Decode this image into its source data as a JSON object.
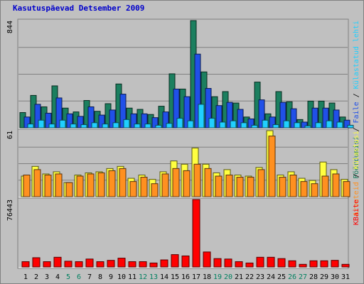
{
  "title": "Kasutuspäevad Detsember 2009",
  "colors": {
    "background": "#c0c0c0",
    "pageviews": "#1b7f5f",
    "files": "#2050e8",
    "hits": "#20d0ff",
    "visits": "#ffff40",
    "sites": "#ff9020",
    "kbytes": "#ff0000",
    "weekend_label": "#008060",
    "weekday_label": "#000000"
  },
  "chart_data": [
    {
      "type": "bar",
      "panel": "top",
      "ymax_label": "844",
      "ylim": [
        0,
        844
      ],
      "legend": [
        {
          "text": "Pöördumisi",
          "color": "#1b7f5f"
        },
        {
          "text": " / ",
          "color": "#000000"
        },
        {
          "text": "Faile",
          "color": "#2050e8"
        },
        {
          "text": " / ",
          "color": "#000000"
        },
        {
          "text": "Külastatud lehti",
          "color": "#20d0ff"
        }
      ],
      "categories": [
        "1",
        "2",
        "3",
        "4",
        "5",
        "6",
        "7",
        "8",
        "9",
        "10",
        "11",
        "12",
        "13",
        "14",
        "15",
        "16",
        "17",
        "18",
        "19",
        "20",
        "21",
        "22",
        "23",
        "24",
        "25",
        "26",
        "27",
        "28",
        "29",
        "30",
        "31"
      ],
      "series": [
        {
          "name": "Pöördumisi",
          "values": [
            120,
            255,
            165,
            330,
            155,
            125,
            215,
            130,
            190,
            345,
            155,
            145,
            105,
            170,
            425,
            305,
            844,
            440,
            245,
            285,
            195,
            85,
            360,
            110,
            285,
            205,
            65,
            210,
            210,
            195,
            85
          ]
        },
        {
          "name": "Faile",
          "values": [
            85,
            185,
            115,
            235,
            110,
            90,
            165,
            100,
            140,
            265,
            110,
            110,
            80,
            125,
            305,
            245,
            580,
            310,
            175,
            200,
            145,
            70,
            220,
            85,
            200,
            150,
            45,
            155,
            155,
            140,
            60
          ]
        },
        {
          "name": "Külastatud lehti",
          "values": [
            30,
            60,
            30,
            60,
            30,
            25,
            40,
            30,
            40,
            65,
            30,
            30,
            20,
            35,
            75,
            55,
            185,
            75,
            45,
            55,
            40,
            20,
            60,
            25,
            55,
            40,
            15,
            40,
            55,
            45,
            20
          ]
        }
      ]
    },
    {
      "type": "bar",
      "panel": "middle",
      "ymax_label": "61",
      "ylim": [
        0,
        61
      ],
      "legend": [
        {
          "text": "Arvuteid",
          "color": "#ff9020"
        },
        {
          "text": " / ",
          "color": "#000000"
        },
        {
          "text": "Külastusi",
          "color": "#ffff40"
        }
      ],
      "categories": [
        "1",
        "2",
        "3",
        "4",
        "5",
        "6",
        "7",
        "8",
        "9",
        "10",
        "11",
        "12",
        "13",
        "14",
        "15",
        "16",
        "17",
        "18",
        "19",
        "20",
        "21",
        "22",
        "23",
        "24",
        "25",
        "26",
        "27",
        "28",
        "29",
        "30",
        "31"
      ],
      "series": [
        {
          "name": "Külastusi",
          "values": [
            19,
            28,
            21,
            23,
            13,
            20,
            22,
            23,
            26,
            28,
            17,
            20,
            16,
            23,
            33,
            30,
            45,
            30,
            22,
            25,
            20,
            19,
            27,
            61,
            20,
            23,
            17,
            15,
            32,
            25,
            16
          ]
        },
        {
          "name": "Arvuteid",
          "values": [
            20,
            25,
            20,
            21,
            13,
            19,
            21,
            22,
            24,
            26,
            14,
            18,
            12,
            21,
            26,
            24,
            30,
            26,
            19,
            20,
            18,
            18,
            25,
            56,
            18,
            20,
            14,
            12,
            19,
            21,
            14
          ]
        }
      ]
    },
    {
      "type": "bar",
      "panel": "bottom",
      "ymax_label": "76443",
      "ylim": [
        0,
        76443
      ],
      "legend": [
        {
          "text": "KBaite",
          "color": "#ff0000"
        }
      ],
      "categories": [
        "1",
        "2",
        "3",
        "4",
        "5",
        "6",
        "7",
        "8",
        "9",
        "10",
        "11",
        "12",
        "13",
        "14",
        "15",
        "16",
        "17",
        "18",
        "19",
        "20",
        "21",
        "22",
        "23",
        "24",
        "25",
        "26",
        "27",
        "28",
        "29",
        "30",
        "31"
      ],
      "series": [
        {
          "name": "KBaite",
          "values": [
            6000,
            10500,
            6000,
            11000,
            6500,
            6000,
            9000,
            6000,
            7500,
            10000,
            6000,
            6000,
            4500,
            8000,
            14000,
            12500,
            76443,
            17000,
            9500,
            9000,
            6000,
            4500,
            11000,
            11000,
            9500,
            7000,
            3000,
            7000,
            7000,
            7500,
            3000
          ]
        }
      ]
    }
  ],
  "x_labels": [
    {
      "text": "1",
      "weekend": false
    },
    {
      "text": "2",
      "weekend": false
    },
    {
      "text": "3",
      "weekend": false
    },
    {
      "text": "4",
      "weekend": false
    },
    {
      "text": "5",
      "weekend": true
    },
    {
      "text": "6",
      "weekend": true
    },
    {
      "text": "7",
      "weekend": false
    },
    {
      "text": "8",
      "weekend": false
    },
    {
      "text": "9",
      "weekend": false
    },
    {
      "text": "10",
      "weekend": false
    },
    {
      "text": "11",
      "weekend": false
    },
    {
      "text": "12",
      "weekend": true
    },
    {
      "text": "13",
      "weekend": true
    },
    {
      "text": "14",
      "weekend": false
    },
    {
      "text": "15",
      "weekend": false
    },
    {
      "text": "16",
      "weekend": false
    },
    {
      "text": "17",
      "weekend": false
    },
    {
      "text": "18",
      "weekend": false
    },
    {
      "text": "19",
      "weekend": true
    },
    {
      "text": "20",
      "weekend": true
    },
    {
      "text": "21",
      "weekend": false
    },
    {
      "text": "22",
      "weekend": false
    },
    {
      "text": "23",
      "weekend": false
    },
    {
      "text": "24",
      "weekend": false
    },
    {
      "text": "25",
      "weekend": false
    },
    {
      "text": "26",
      "weekend": true
    },
    {
      "text": "27",
      "weekend": true
    },
    {
      "text": "28",
      "weekend": false
    },
    {
      "text": "29",
      "weekend": false
    },
    {
      "text": "30",
      "weekend": false
    },
    {
      "text": "31",
      "weekend": false
    }
  ]
}
